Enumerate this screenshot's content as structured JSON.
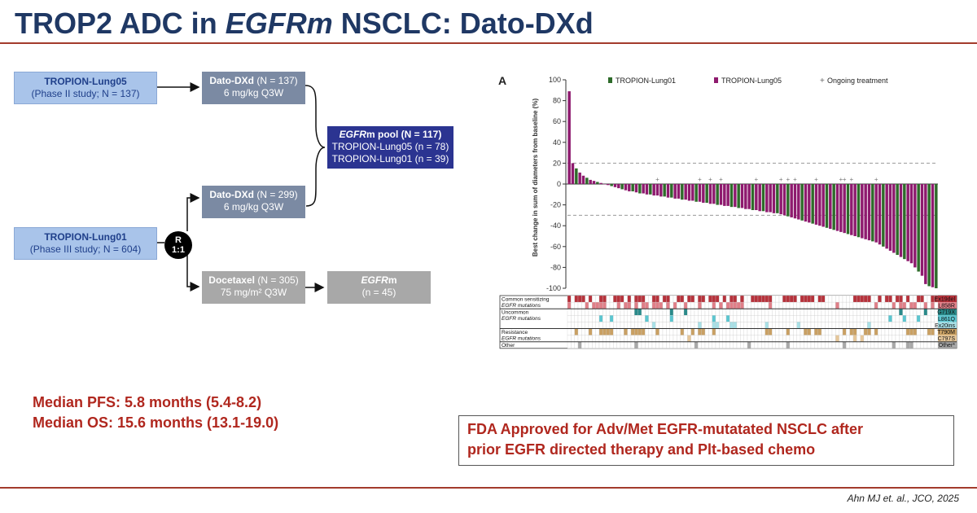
{
  "slide": {
    "title_parts": [
      "TROP2 ADC in ",
      "EGFRm",
      " NSCLC: Dato-DXd"
    ],
    "citation": "Ahn MJ et. al., JCO, 2025"
  },
  "diagram": {
    "lung05": {
      "name": "TROPION-Lung05",
      "detail": "(Phase II study; N = 137)"
    },
    "lung01": {
      "name": "TROPION-Lung01",
      "detail": "(Phase III study; N = 604)"
    },
    "arm_dato_lung05": {
      "name": "Dato-DXd",
      "n": " (N = 137)",
      "dose": "6 mg/kg Q3W"
    },
    "arm_dato_lung01": {
      "name": "Dato-DXd",
      "n": " (N = 299)",
      "dose": "6 mg/kg Q3W"
    },
    "arm_docetaxel": {
      "name": "Docetaxel",
      "n": " (N = 305)",
      "dose": "75 mg/m² Q3W"
    },
    "randomization": {
      "line1": "R",
      "line2": "1:1"
    },
    "pool": {
      "name": "EGFR",
      "name_suffix": "m pool (N = 117)",
      "line2": "TROPION-Lung05 (n = 78)",
      "line3": "TROPION-Lung01 (n = 39)"
    },
    "docetaxel_egfrm": {
      "name": "EGFR",
      "name_suffix": "m",
      "n": "(n = 45)"
    }
  },
  "results": {
    "pfs": "Median PFS: 5.8 months (5.4-8.2)",
    "os": "Median OS: 15.6 months (13.1-19.0)"
  },
  "approval": {
    "line1": "FDA Approved for Adv/Met EGFR-mutatated NSCLC after",
    "line2": "prior EGFR directed therapy and Plt-based chemo"
  },
  "chart_data": {
    "type": "bar",
    "panel_label": "A",
    "ylabel": "Best change in sum of diameters from baseline (%)",
    "ylim": [
      -100,
      100
    ],
    "yticks": [
      100,
      80,
      60,
      40,
      20,
      0,
      -20,
      -40,
      -60,
      -80,
      -100
    ],
    "reference_lines": [
      20,
      -30
    ],
    "legend": [
      {
        "name": "TROPION-Lung01",
        "color": "#2e6b2a"
      },
      {
        "name": "TROPION-Lung05",
        "color": "#8e1a6e"
      },
      {
        "name": "Ongoing treatment",
        "symbol": "+"
      }
    ],
    "series": [
      {
        "name": "TROPION-Lung01",
        "color": "#2e6b2a"
      },
      {
        "name": "TROPION-Lung05",
        "color": "#8e1a6e"
      }
    ],
    "values": [
      89,
      20,
      15,
      11,
      8,
      6,
      4,
      3,
      2,
      1,
      0,
      -1,
      -2,
      -3,
      -4,
      -5,
      -6,
      -7,
      -7,
      -8,
      -9,
      -9,
      -10,
      -10,
      -11,
      -11,
      -12,
      -12,
      -13,
      -13,
      -14,
      -14,
      -15,
      -15,
      -16,
      -16,
      -17,
      -17,
      -18,
      -18,
      -19,
      -19,
      -20,
      -20,
      -21,
      -21,
      -22,
      -22,
      -23,
      -23,
      -24,
      -24,
      -25,
      -25,
      -26,
      -26,
      -27,
      -27,
      -28,
      -28,
      -29,
      -30,
      -31,
      -32,
      -33,
      -34,
      -35,
      -36,
      -37,
      -38,
      -39,
      -40,
      -41,
      -42,
      -43,
      -44,
      -45,
      -46,
      -47,
      -48,
      -49,
      -50,
      -51,
      -52,
      -53,
      -54,
      -55,
      -56,
      -58,
      -60,
      -62,
      -64,
      -66,
      -68,
      -70,
      -72,
      -74,
      -76,
      -80,
      -84,
      -88,
      -96,
      -98,
      -99,
      -100
    ],
    "series_index": [
      1,
      1,
      0,
      1,
      1,
      0,
      1,
      1,
      0,
      1,
      1,
      1,
      0,
      1,
      1,
      0,
      1,
      1,
      0,
      1,
      0,
      1,
      1,
      0,
      1,
      1,
      1,
      0,
      1,
      0,
      1,
      1,
      0,
      1,
      1,
      1,
      0,
      1,
      1,
      0,
      1,
      1,
      0,
      1,
      1,
      1,
      0,
      1,
      0,
      1,
      1,
      1,
      0,
      1,
      1,
      0,
      1,
      1,
      1,
      0,
      1,
      1,
      0,
      1,
      1,
      1,
      0,
      1,
      1,
      0,
      1,
      1,
      1,
      0,
      1,
      0,
      1,
      1,
      1,
      0,
      1,
      1,
      0,
      1,
      1,
      1,
      0,
      1,
      1,
      0,
      1,
      1,
      1,
      0,
      1,
      0,
      1,
      1,
      1,
      0,
      1,
      1,
      0,
      1,
      0
    ],
    "ongoing_indices": [
      25,
      37,
      40,
      43,
      53,
      60,
      62,
      64,
      70,
      77,
      78,
      80,
      87
    ],
    "mutation_rows": [
      {
        "label": "Ex19del",
        "group": "Common sensitizing",
        "color": "#b6323b"
      },
      {
        "label": "L858R",
        "group": "EGFR mutations",
        "color": "#e07f88"
      },
      {
        "label": "G719X",
        "group": "",
        "color": "#2a8a8a"
      },
      {
        "label": "L861Q",
        "group": "Uncommon",
        "color": "#5cc6d0"
      },
      {
        "label": "Ex20ins",
        "group": "EGFR mutations",
        "color": "#a8e0e6"
      },
      {
        "label": "T790M",
        "group": "Resistance",
        "color": "#c9a063"
      },
      {
        "label": "C797S",
        "group": "EGFR mutations",
        "color": "#e6c79a"
      },
      {
        "label": "Other*",
        "group": "Other",
        "color": "#a8a8a8"
      }
    ],
    "mutation_group_labels": [
      {
        "line1": "Common sensitizing",
        "line2": "EGFR mutations"
      },
      {
        "line1": "Uncommon",
        "line2": "EGFR mutations"
      },
      {
        "line1": "Resistance",
        "line2": "EGFR mutations"
      },
      {
        "line1": "Other",
        "line2": ""
      }
    ]
  }
}
